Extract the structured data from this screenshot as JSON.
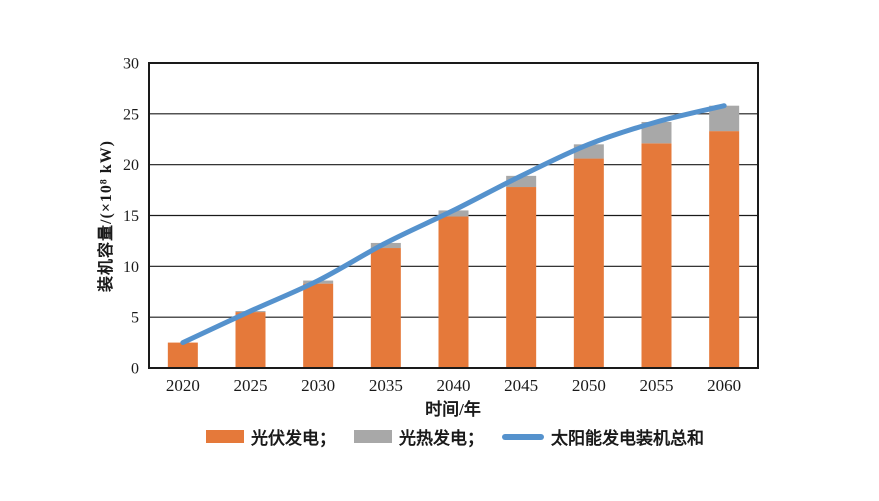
{
  "chart_data": {
    "type": "bar",
    "subtype": "stacked-bars-with-line-overlay",
    "title": "",
    "categories": [
      "2020",
      "2025",
      "2030",
      "2035",
      "2040",
      "2045",
      "2050",
      "2055",
      "2060"
    ],
    "series": [
      {
        "name": "光伏发电",
        "kind": "bar",
        "color": "#E5793A",
        "values": [
          2.5,
          5.5,
          8.3,
          11.8,
          14.9,
          17.8,
          20.6,
          22.1,
          23.3
        ]
      },
      {
        "name": "光热发电",
        "kind": "bar",
        "color": "#A8A8A8",
        "values": [
          0,
          0.1,
          0.3,
          0.5,
          0.6,
          1.1,
          1.4,
          2.1,
          2.5
        ]
      },
      {
        "name": "太阳能发电装机总和",
        "kind": "line",
        "color": "#5592CD",
        "values": [
          2.5,
          5.6,
          8.6,
          12.3,
          15.5,
          18.9,
          22.0,
          24.2,
          25.8
        ]
      }
    ],
    "xlabel": "时间/年",
    "ylabel": "装机容量/(×10⁸ kW)",
    "ylim": [
      0,
      30
    ],
    "ytick_step": 5,
    "yticks": [
      "0",
      "5",
      "10",
      "15",
      "20",
      "25",
      "30"
    ],
    "grid": true,
    "legend_position": "bottom"
  },
  "legend": {
    "items": [
      {
        "label": "光伏发电；",
        "swatch": "orange-rect"
      },
      {
        "label": "光热发电；",
        "swatch": "gray-rect"
      },
      {
        "label": "太阳能发电装机总和",
        "swatch": "blue-line"
      }
    ]
  },
  "colors": {
    "bar_pv": "#E5793A",
    "bar_csp": "#A8A8A8",
    "line_total": "#5592CD",
    "axis": "#1a1a1a",
    "background": "#ffffff"
  }
}
